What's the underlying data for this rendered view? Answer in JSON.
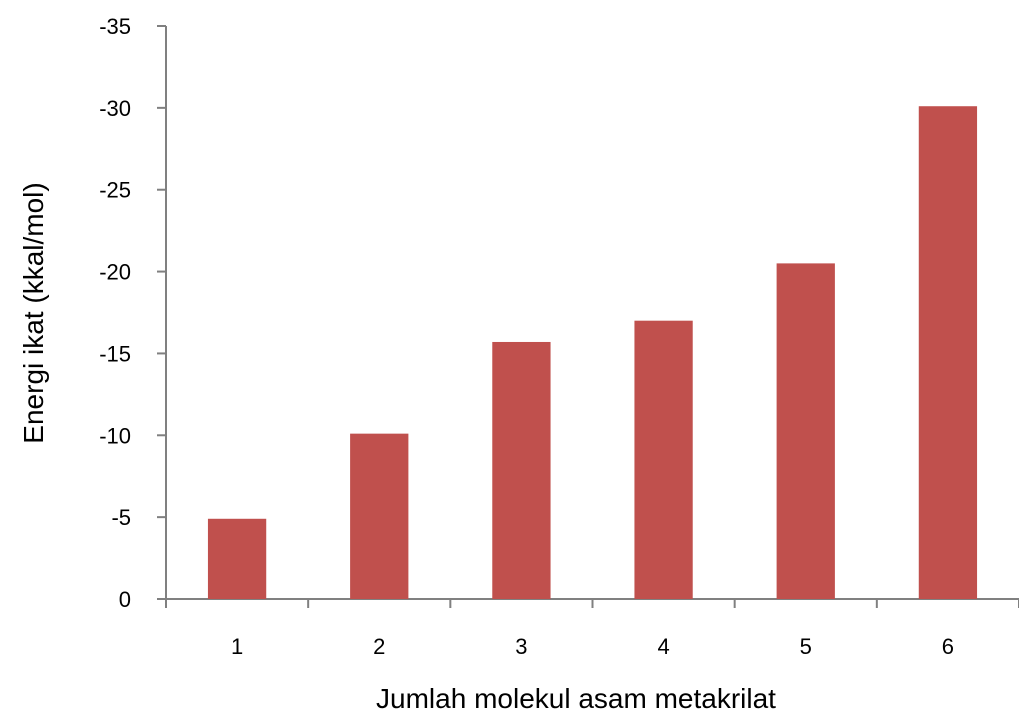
{
  "chart_data": {
    "type": "bar",
    "categories": [
      "1",
      "2",
      "3",
      "4",
      "5",
      "6"
    ],
    "values": [
      -4.9,
      -10.1,
      -15.7,
      -17.0,
      -20.5,
      -30.1
    ],
    "xlabel": "Jumlah molekul asam metakrilat",
    "ylabel": "Energi ikat (kkal/mol)",
    "ylim": [
      0,
      -35
    ],
    "yticks": [
      "0",
      "-5",
      "-10",
      "-15",
      "-20",
      "-25",
      "-30",
      "-35"
    ],
    "grid": false,
    "legend": "none",
    "bar_color": "#c0504d",
    "axis_color": "#808080"
  }
}
